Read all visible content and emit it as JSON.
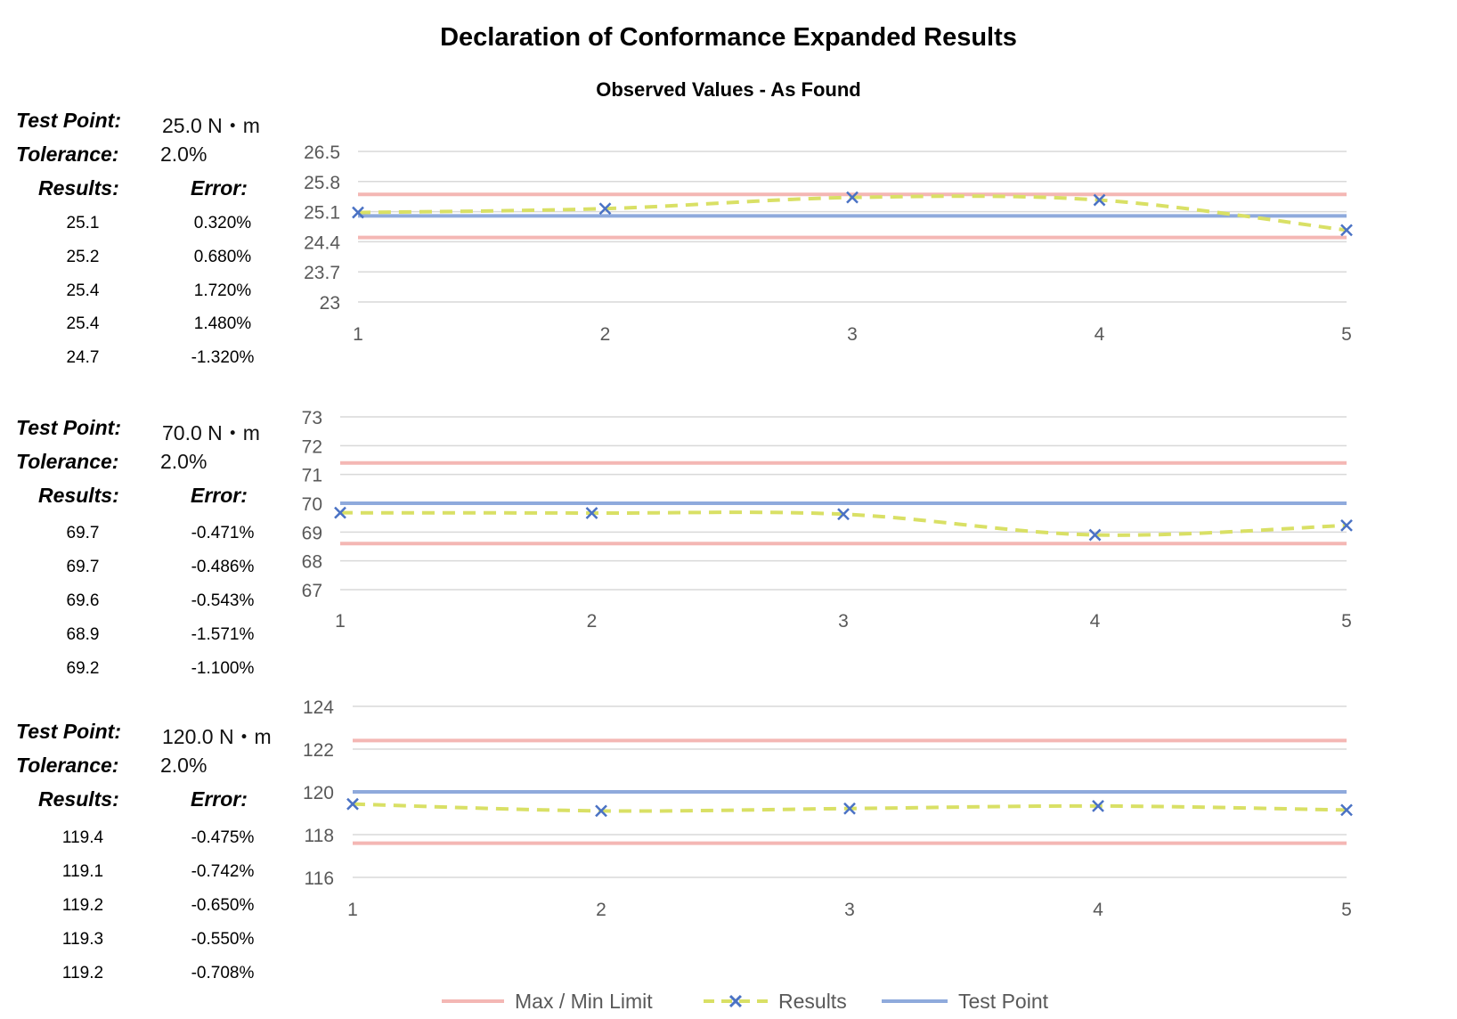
{
  "title": "Declaration of Conformance Expanded Results",
  "subtitle": "Observed Values - As Found",
  "labels": {
    "test_point": "Test Point:",
    "tolerance": "Tolerance:",
    "results": "Results:",
    "error": "Error:"
  },
  "panels": [
    {
      "test_point": "25.0 N・m",
      "tolerance": "2.0%",
      "rows": [
        {
          "result": "25.1",
          "error": "0.320%"
        },
        {
          "result": "25.2",
          "error": "0.680%"
        },
        {
          "result": "25.4",
          "error": "1.720%"
        },
        {
          "result": "25.4",
          "error": "1.480%"
        },
        {
          "result": "24.7",
          "error": "-1.320%"
        }
      ]
    },
    {
      "test_point": "70.0 N・m",
      "tolerance": "2.0%",
      "rows": [
        {
          "result": "69.7",
          "error": "-0.471%"
        },
        {
          "result": "69.7",
          "error": "-0.486%"
        },
        {
          "result": "69.6",
          "error": "-0.543%"
        },
        {
          "result": "68.9",
          "error": "-1.571%"
        },
        {
          "result": "69.2",
          "error": "-1.100%"
        }
      ]
    },
    {
      "test_point": "120.0 N・m",
      "tolerance": "2.0%",
      "rows": [
        {
          "result": "119.4",
          "error": "-0.475%"
        },
        {
          "result": "119.1",
          "error": "-0.742%"
        },
        {
          "result": "119.2",
          "error": "-0.650%"
        },
        {
          "result": "119.3",
          "error": "-0.550%"
        },
        {
          "result": "119.2",
          "error": "-0.708%"
        }
      ]
    }
  ],
  "legend": [
    {
      "name": "Max / Min Limit",
      "color": "#F4B7B4",
      "style": "solid"
    },
    {
      "name": "Results",
      "color": "#D9E065",
      "marker_color": "#4A72C4",
      "style": "dashed-x"
    },
    {
      "name": "Test Point",
      "color": "#8FAADC",
      "style": "solid"
    }
  ],
  "chart_data": [
    {
      "type": "line",
      "x": [
        1,
        2,
        3,
        4,
        5
      ],
      "ylim": [
        23,
        26.5
      ],
      "yticks": [
        "26.5",
        "25.8",
        "25.1",
        "24.4",
        "23.7",
        "23"
      ],
      "ytick_values": [
        26.5,
        25.8,
        25.1,
        24.4,
        23.7,
        23
      ],
      "series": [
        {
          "name": "Max / Min Limit",
          "upper": 25.5,
          "lower": 24.5
        },
        {
          "name": "Results",
          "values": [
            25.08,
            25.17,
            25.43,
            25.37,
            24.67
          ]
        },
        {
          "name": "Test Point",
          "value": 25.0
        }
      ]
    },
    {
      "type": "line",
      "x": [
        1,
        2,
        3,
        4,
        5
      ],
      "ylim": [
        67,
        73
      ],
      "yticks": [
        "73",
        "72",
        "71",
        "70",
        "69",
        "68",
        "67"
      ],
      "ytick_values": [
        73,
        72,
        71,
        70,
        69,
        68,
        67
      ],
      "series": [
        {
          "name": "Max / Min Limit",
          "upper": 71.4,
          "lower": 68.6
        },
        {
          "name": "Results",
          "values": [
            69.67,
            69.66,
            69.62,
            68.9,
            69.23
          ]
        },
        {
          "name": "Test Point",
          "value": 70.0
        }
      ]
    },
    {
      "type": "line",
      "x": [
        1,
        2,
        3,
        4,
        5
      ],
      "ylim": [
        116,
        124
      ],
      "yticks": [
        "124",
        "122",
        "120",
        "118",
        "116"
      ],
      "ytick_values": [
        124,
        122,
        120,
        118,
        116
      ],
      "series": [
        {
          "name": "Max / Min Limit",
          "upper": 122.4,
          "lower": 117.6
        },
        {
          "name": "Results",
          "values": [
            119.43,
            119.11,
            119.22,
            119.34,
            119.15
          ]
        },
        {
          "name": "Test Point",
          "value": 120.0
        }
      ]
    }
  ]
}
